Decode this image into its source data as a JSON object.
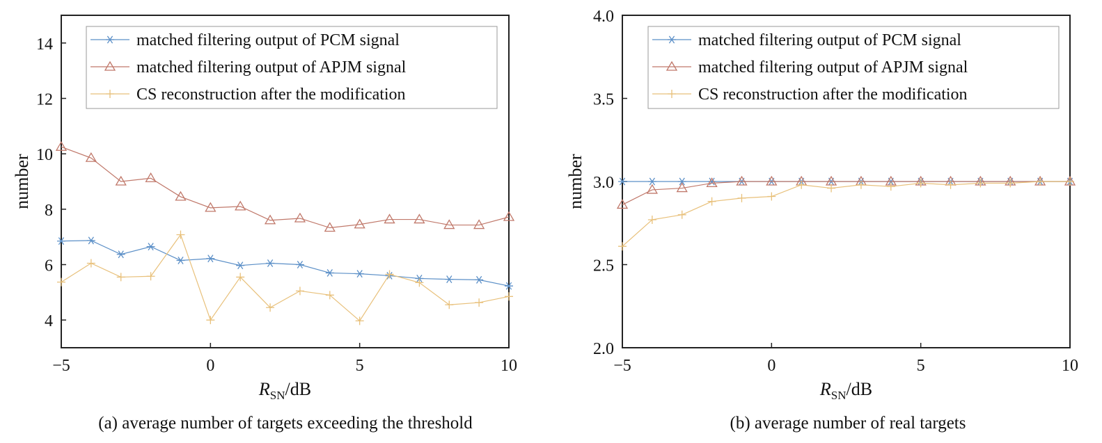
{
  "chart_data": [
    {
      "type": "line",
      "caption": "(a) average number of targets exceeding the threshold",
      "xlabel": {
        "main": "R",
        "sub": "SN",
        "unit": "/dB"
      },
      "ylabel": "number",
      "xlim": [
        -5,
        10
      ],
      "ylim": [
        3,
        15
      ],
      "xticks": [
        -5,
        0,
        5,
        10
      ],
      "xtick_labels": [
        "−5",
        "0",
        "5",
        "10"
      ],
      "yticks": [
        4,
        6,
        8,
        10,
        12,
        14
      ],
      "ytick_labels": [
        "4",
        "6",
        "8",
        "10",
        "12",
        "14"
      ],
      "grid": false,
      "legend_position": "top",
      "x": [
        -5,
        -4,
        -3,
        -2,
        -1,
        0,
        1,
        2,
        3,
        4,
        5,
        6,
        7,
        8,
        9,
        10
      ],
      "series": [
        {
          "name": "matched filtering output of PCM signal",
          "marker": "asterisk",
          "color": "#5b8fc7",
          "values": [
            6.85,
            6.87,
            6.37,
            6.65,
            6.15,
            6.22,
            5.97,
            6.05,
            6.0,
            5.7,
            5.67,
            5.6,
            5.5,
            5.47,
            5.45,
            5.23
          ]
        },
        {
          "name": "matched filtering output of APJM signal",
          "marker": "triangle",
          "color": "#c0786a",
          "values": [
            10.25,
            9.85,
            9.0,
            9.12,
            8.45,
            8.05,
            8.1,
            7.6,
            7.67,
            7.33,
            7.45,
            7.63,
            7.63,
            7.43,
            7.43,
            7.72
          ]
        },
        {
          "name": "CS reconstruction after the modification",
          "marker": "plus",
          "color": "#e8c07a",
          "values": [
            5.37,
            6.05,
            5.55,
            5.58,
            7.08,
            4.0,
            5.55,
            4.45,
            5.05,
            4.9,
            3.97,
            5.65,
            5.35,
            4.55,
            4.63,
            4.85
          ]
        }
      ]
    },
    {
      "type": "line",
      "caption": "(b) average number of real targets",
      "xlabel": {
        "main": "R",
        "sub": "SN",
        "unit": "/dB"
      },
      "ylabel": "number",
      "xlim": [
        -5,
        10
      ],
      "ylim": [
        2.0,
        4.0
      ],
      "xticks": [
        -5,
        0,
        5,
        10
      ],
      "xtick_labels": [
        "−5",
        "0",
        "5",
        "10"
      ],
      "yticks": [
        2.0,
        2.5,
        3.0,
        3.5,
        4.0
      ],
      "ytick_labels": [
        "2.0",
        "2.5",
        "3.0",
        "3.5",
        "4.0"
      ],
      "grid": false,
      "legend_position": "top",
      "x": [
        -5,
        -4,
        -3,
        -2,
        -1,
        0,
        1,
        2,
        3,
        4,
        5,
        6,
        7,
        8,
        9,
        10
      ],
      "series": [
        {
          "name": "matched filtering output of PCM signal",
          "marker": "asterisk",
          "color": "#5b8fc7",
          "values": [
            3.0,
            3.0,
            3.0,
            3.0,
            3.0,
            3.0,
            3.0,
            3.0,
            3.0,
            3.0,
            3.0,
            3.0,
            3.0,
            3.0,
            3.0,
            3.0
          ]
        },
        {
          "name": "matched filtering output of APJM signal",
          "marker": "triangle",
          "color": "#c0786a",
          "values": [
            2.86,
            2.95,
            2.96,
            2.99,
            3.0,
            3.0,
            3.0,
            3.0,
            3.0,
            3.0,
            3.0,
            3.0,
            3.0,
            3.0,
            3.0,
            3.0
          ]
        },
        {
          "name": "CS reconstruction after the modification",
          "marker": "plus",
          "color": "#e8c07a",
          "values": [
            2.61,
            2.77,
            2.8,
            2.88,
            2.9,
            2.91,
            2.98,
            2.96,
            2.98,
            2.97,
            2.99,
            2.98,
            2.99,
            2.99,
            3.0,
            3.0
          ]
        }
      ]
    }
  ]
}
